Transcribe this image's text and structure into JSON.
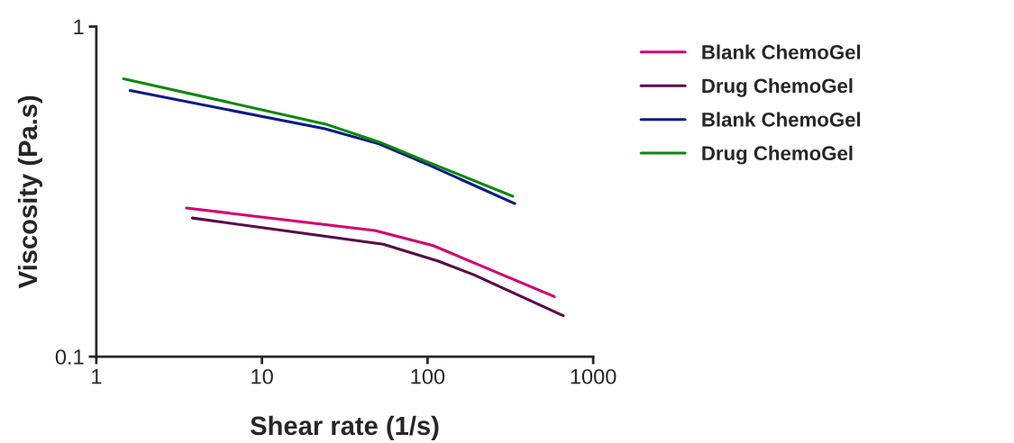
{
  "chart_data": {
    "type": "line",
    "xlabel": "Shear rate (1/s)",
    "ylabel": "Viscosity (Pa.s)",
    "log": "xy",
    "xlim": [
      1,
      1000
    ],
    "ylim": [
      0.1,
      1
    ],
    "xticks": [
      1,
      10,
      100,
      1000
    ],
    "yticks": [
      0.1,
      1
    ],
    "grid": false,
    "legend": "right",
    "marker": "none",
    "line_style": "solid",
    "series": [
      {
        "name": "Blank ChemoGel",
        "color": "#d6006f",
        "x": [
          3.5,
          48,
          108,
          583
        ],
        "values": [
          0.282,
          0.241,
          0.217,
          0.152
        ]
      },
      {
        "name": "Drug ChemoGel",
        "color": "#5a0a4a",
        "x": [
          3.8,
          54,
          115,
          190,
          660
        ],
        "values": [
          0.263,
          0.219,
          0.195,
          0.177,
          0.133
        ]
      },
      {
        "name": "Blank ChemoGel",
        "color": "#0a1a8c",
        "x": [
          1.6,
          24,
          51,
          100,
          336
        ],
        "values": [
          0.64,
          0.49,
          0.441,
          0.382,
          0.291
        ]
      },
      {
        "name": "Drug ChemoGel",
        "color": "#0a8a0a",
        "x": [
          1.46,
          24,
          51,
          100,
          327
        ],
        "values": [
          0.695,
          0.507,
          0.447,
          0.389,
          0.306
        ]
      }
    ]
  }
}
